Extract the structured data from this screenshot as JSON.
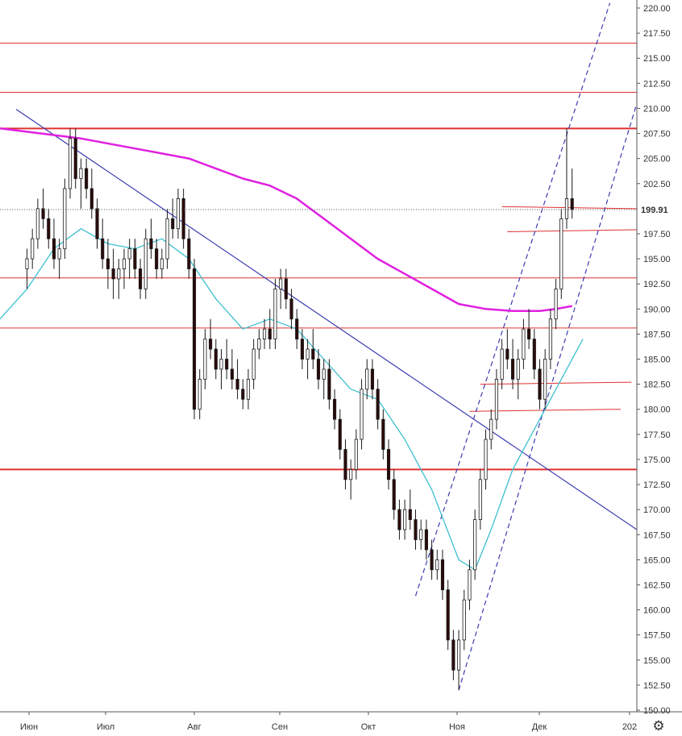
{
  "chart_data": {
    "type": "candlestick",
    "y_axis": {
      "position": "right",
      "min": 150.0,
      "max": 220.0,
      "ticks": [
        "220.00",
        "217.50",
        "215.00",
        "212.50",
        "210.00",
        "207.50",
        "205.00",
        "202.50",
        "200.00",
        "197.50",
        "195.00",
        "192.50",
        "190.00",
        "187.50",
        "185.00",
        "182.50",
        "180.00",
        "177.50",
        "175.00",
        "172.50",
        "170.00",
        "167.50",
        "165.00",
        "162.50",
        "160.00",
        "157.50",
        "155.00",
        "152.50",
        "150.00"
      ]
    },
    "x_axis": {
      "labels": [
        "Июн",
        "Июл",
        "Авг",
        "Сен",
        "Окт",
        "Ноя",
        "Дек",
        "202"
      ]
    },
    "last_price": {
      "value": 199.91,
      "label": "199.91",
      "color": "#000000"
    },
    "candles": [
      [
        0,
        194,
        196,
        192,
        195
      ],
      [
        1,
        195,
        198,
        194,
        197
      ],
      [
        2,
        197,
        201,
        196,
        200
      ],
      [
        3,
        200,
        202,
        198,
        199
      ],
      [
        4,
        199,
        200,
        196,
        197
      ],
      [
        5,
        197,
        199,
        194,
        195
      ],
      [
        6,
        195,
        197,
        193,
        196
      ],
      [
        7,
        196,
        203,
        195,
        202
      ],
      [
        8,
        202,
        208,
        201,
        207
      ],
      [
        9,
        207,
        208,
        202,
        203
      ],
      [
        10,
        203,
        205,
        200,
        204
      ],
      [
        11,
        204,
        205,
        201,
        202
      ],
      [
        12,
        202,
        204,
        199,
        200
      ],
      [
        13,
        200,
        201,
        196,
        197
      ],
      [
        14,
        197,
        199,
        194,
        195
      ],
      [
        15,
        195,
        197,
        192,
        194
      ],
      [
        16,
        194,
        196,
        191,
        193
      ],
      [
        17,
        193,
        195,
        191,
        194
      ],
      [
        18,
        194,
        196,
        192,
        195
      ],
      [
        19,
        195,
        197,
        193,
        196
      ],
      [
        20,
        196,
        197,
        193,
        194
      ],
      [
        21,
        194,
        195,
        191,
        192
      ],
      [
        22,
        192,
        198,
        191,
        197
      ],
      [
        23,
        197,
        199,
        195,
        196
      ],
      [
        24,
        196,
        197,
        193,
        194
      ],
      [
        25,
        194,
        196,
        193,
        195
      ],
      [
        26,
        195,
        200,
        194,
        199
      ],
      [
        27,
        199,
        201,
        197,
        198
      ],
      [
        28,
        198,
        202,
        197,
        201
      ],
      [
        29,
        201,
        202,
        196,
        197
      ],
      [
        30,
        197,
        198,
        193,
        194
      ],
      [
        31,
        194,
        195,
        179,
        180
      ],
      [
        32,
        180,
        184,
        179,
        183
      ],
      [
        33,
        183,
        188,
        182,
        187
      ],
      [
        34,
        187,
        189,
        185,
        186
      ],
      [
        35,
        186,
        187,
        183,
        184
      ],
      [
        36,
        184,
        186,
        182,
        185
      ],
      [
        37,
        185,
        187,
        183,
        184
      ],
      [
        38,
        184,
        186,
        182,
        183
      ],
      [
        39,
        183,
        185,
        181,
        182
      ],
      [
        40,
        182,
        183,
        180,
        181
      ],
      [
        41,
        181,
        184,
        180,
        183
      ],
      [
        42,
        183,
        187,
        182,
        186
      ],
      [
        43,
        186,
        188,
        185,
        187
      ],
      [
        44,
        187,
        189,
        186,
        188
      ],
      [
        45,
        188,
        190,
        186,
        187
      ],
      [
        46,
        187,
        193,
        186,
        192
      ],
      [
        47,
        192,
        194,
        190,
        193
      ],
      [
        48,
        193,
        194,
        190,
        191
      ],
      [
        49,
        191,
        192,
        188,
        189
      ],
      [
        50,
        189,
        190,
        186,
        187
      ],
      [
        51,
        187,
        188,
        184,
        185
      ],
      [
        52,
        185,
        187,
        183,
        186
      ],
      [
        53,
        186,
        188,
        184,
        185
      ],
      [
        54,
        185,
        186,
        182,
        183
      ],
      [
        55,
        183,
        185,
        181,
        184
      ],
      [
        56,
        184,
        185,
        180,
        181
      ],
      [
        57,
        181,
        182,
        178,
        179
      ],
      [
        58,
        179,
        180,
        175,
        176
      ],
      [
        59,
        176,
        177,
        172,
        173
      ],
      [
        60,
        173,
        175,
        171,
        174
      ],
      [
        61,
        174,
        178,
        173,
        177
      ],
      [
        62,
        177,
        183,
        176,
        182
      ],
      [
        63,
        182,
        185,
        181,
        184
      ],
      [
        64,
        184,
        185,
        181,
        182
      ],
      [
        65,
        182,
        183,
        178,
        179
      ],
      [
        66,
        179,
        180,
        175,
        176
      ],
      [
        67,
        176,
        177,
        172,
        173
      ],
      [
        68,
        173,
        174,
        169,
        170
      ],
      [
        69,
        170,
        171,
        167,
        168
      ],
      [
        70,
        168,
        171,
        167,
        170
      ],
      [
        71,
        170,
        172,
        168,
        169
      ],
      [
        72,
        169,
        170,
        166,
        167
      ],
      [
        73,
        167,
        169,
        166,
        168
      ],
      [
        74,
        168,
        169,
        165,
        166
      ],
      [
        75,
        166,
        167,
        163,
        164
      ],
      [
        76,
        164,
        166,
        163,
        165
      ],
      [
        77,
        165,
        166,
        161,
        162
      ],
      [
        78,
        162,
        163,
        156,
        157
      ],
      [
        79,
        157,
        158,
        153,
        154
      ],
      [
        80,
        154,
        158,
        152,
        157
      ],
      [
        81,
        157,
        162,
        156,
        161
      ],
      [
        82,
        161,
        165,
        160,
        164
      ],
      [
        83,
        164,
        170,
        163,
        169
      ],
      [
        84,
        169,
        174,
        168,
        173
      ],
      [
        85,
        173,
        178,
        172,
        177
      ],
      [
        86,
        177,
        180,
        176,
        179
      ],
      [
        87,
        179,
        184,
        178,
        183
      ],
      [
        88,
        183,
        187,
        182,
        186
      ],
      [
        89,
        186,
        188,
        184,
        185
      ],
      [
        90,
        185,
        187,
        182,
        183
      ],
      [
        91,
        183,
        186,
        181,
        185
      ],
      [
        92,
        185,
        189,
        184,
        188
      ],
      [
        93,
        188,
        190,
        186,
        187
      ],
      [
        94,
        187,
        188,
        183,
        184
      ],
      [
        95,
        184,
        185,
        180,
        181
      ],
      [
        96,
        181,
        186,
        180,
        185
      ],
      [
        97,
        185,
        190,
        184,
        189
      ],
      [
        98,
        189,
        193,
        188,
        192
      ],
      [
        99,
        192,
        200,
        191,
        199
      ],
      [
        100,
        199,
        208,
        198,
        201
      ],
      [
        101,
        201,
        204,
        199,
        199.91
      ]
    ],
    "indicators": {
      "ma_slow": {
        "color": "#e020e0",
        "points": [
          [
            -5,
            208
          ],
          [
            10,
            207
          ],
          [
            20,
            206
          ],
          [
            25,
            205.5
          ],
          [
            30,
            205
          ],
          [
            35,
            204
          ],
          [
            40,
            203
          ],
          [
            45,
            202.3
          ],
          [
            50,
            201
          ],
          [
            55,
            199
          ],
          [
            60,
            197
          ],
          [
            65,
            195
          ],
          [
            70,
            193.5
          ],
          [
            75,
            192
          ],
          [
            80,
            190.5
          ],
          [
            85,
            190
          ],
          [
            90,
            189.8
          ],
          [
            95,
            189.8
          ],
          [
            98,
            190
          ],
          [
            101,
            190.3
          ]
        ]
      },
      "ma_fast": {
        "color": "#3cc0d0",
        "points": [
          [
            -5,
            189
          ],
          [
            0,
            192
          ],
          [
            5,
            196
          ],
          [
            10,
            198
          ],
          [
            15,
            196.5
          ],
          [
            20,
            196
          ],
          [
            25,
            197
          ],
          [
            30,
            195
          ],
          [
            35,
            191
          ],
          [
            40,
            188
          ],
          [
            45,
            189
          ],
          [
            50,
            188
          ],
          [
            55,
            185
          ],
          [
            60,
            182
          ],
          [
            65,
            181
          ],
          [
            70,
            177
          ],
          [
            75,
            172
          ],
          [
            80,
            165
          ],
          [
            83,
            164
          ],
          [
            86,
            168
          ],
          [
            90,
            174
          ],
          [
            95,
            179
          ],
          [
            100,
            184
          ],
          [
            103,
            187
          ]
        ]
      }
    },
    "horizontal_levels": [
      {
        "value": 216.5,
        "x_from": -5,
        "x_to": 113,
        "color": "#e03030",
        "width": 1
      },
      {
        "value": 211.6,
        "x_from": -5,
        "x_to": 113,
        "color": "#e03030",
        "width": 1
      },
      {
        "value": 208.0,
        "x_from": -5,
        "x_to": 113,
        "color": "#e03030",
        "width": 2
      },
      {
        "value": 193.1,
        "x_from": -5,
        "x_to": 113,
        "color": "#e03030",
        "width": 1
      },
      {
        "value": 188.1,
        "x_from": -5,
        "x_to": 113,
        "color": "#e03030",
        "width": 1
      },
      {
        "value": 174.0,
        "x_from": -5,
        "x_to": 113,
        "color": "#e03030",
        "width": 2
      }
    ],
    "segment_levels": [
      {
        "x1": 88,
        "y1": 200.2,
        "x2": 113,
        "y2": 200.0,
        "color": "#e03030"
      },
      {
        "x1": 89,
        "y1": 197.7,
        "x2": 113,
        "y2": 197.9,
        "color": "#e03030"
      },
      {
        "x1": 84,
        "y1": 182.5,
        "x2": 112,
        "y2": 182.7,
        "color": "#e03030"
      },
      {
        "x1": 82,
        "y1": 179.8,
        "x2": 110,
        "y2": 180.0,
        "color": "#e03030"
      }
    ],
    "trend_lines": [
      {
        "x1": -2,
        "y1": 209.9,
        "x2": 113,
        "y2": 168.0,
        "color": "#3c3cb0",
        "style": "solid"
      },
      {
        "x1": 72,
        "y1": 161.4,
        "x2": 108,
        "y2": 220.5,
        "color": "#3c3cb0",
        "style": "dashed"
      },
      {
        "x1": 80,
        "y1": 152.0,
        "x2": 113,
        "y2": 210.5,
        "color": "#3c3cb0",
        "style": "dashed"
      }
    ],
    "x_range": [
      -5,
      113
    ],
    "grid": false,
    "colors": {
      "up": "#ffffff",
      "down": "#2b0a0a",
      "wick": "#1a1a1a",
      "axis": "#555555"
    }
  },
  "toolbar": {
    "settings_icon": "gear-icon"
  }
}
